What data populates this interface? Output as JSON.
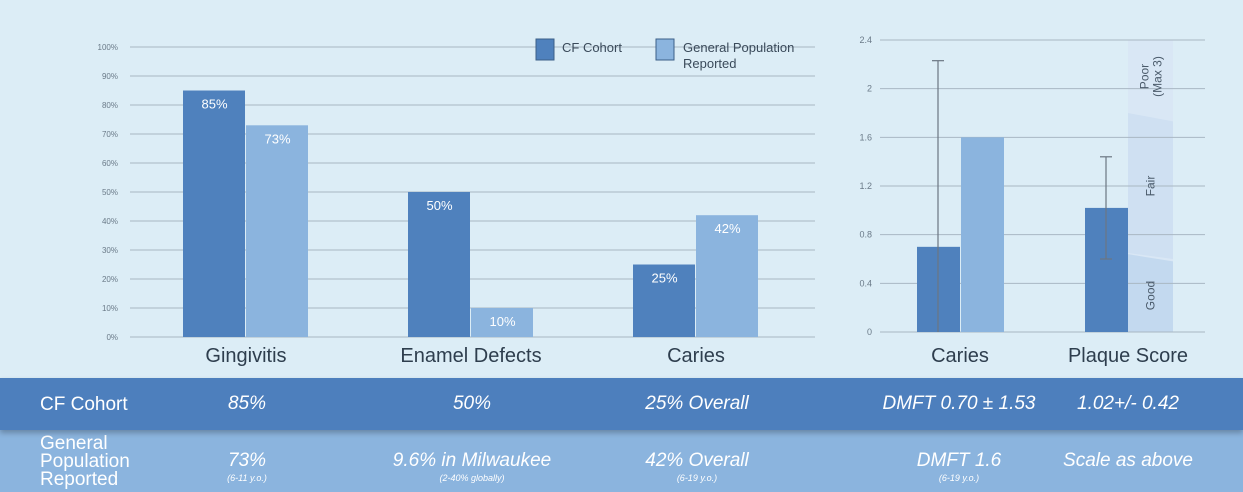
{
  "chart_data": [
    {
      "type": "bar",
      "categories": [
        "Gingivitis",
        "Enamel Defects",
        "Caries"
      ],
      "series": [
        {
          "name": "CF Cohort",
          "values": [
            85,
            50,
            25
          ],
          "labels": [
            "85%",
            "50%",
            "25%"
          ]
        },
        {
          "name": "General Population Reported",
          "values": [
            73,
            10,
            42
          ],
          "labels": [
            "73%",
            "10%",
            "42%"
          ]
        }
      ],
      "ylim": [
        0,
        100
      ],
      "yticks": [
        "0%",
        "10%",
        "20%",
        "30%",
        "40%",
        "50%",
        "60%",
        "70%",
        "80%",
        "90%",
        "100%"
      ],
      "legend": {
        "position": "top-right",
        "entries": [
          "CF Cohort",
          [
            "General Population",
            "Reported"
          ]
        ]
      },
      "grid": true
    },
    {
      "type": "bar",
      "categories": [
        "Caries",
        "Plaque Score"
      ],
      "series": [
        {
          "name": "CF Cohort",
          "values": [
            0.7,
            1.02
          ],
          "error": [
            1.53,
            0.42
          ]
        },
        {
          "name": "General Population Reported",
          "values": [
            1.6,
            null
          ]
        }
      ],
      "ylim": [
        0,
        2.4
      ],
      "yticks": [
        "0",
        "0.4",
        "0.8",
        "1.2",
        "1.6",
        "2",
        "2.4"
      ],
      "bands": [
        {
          "label": "Good",
          "from": 0,
          "to": 0.6
        },
        {
          "label": "Fair",
          "from": 0.6,
          "to": 1.8
        },
        {
          "label": [
            "Poor",
            "(Max 3)"
          ],
          "from": 1.8,
          "to": 2.4
        }
      ],
      "grid": true
    }
  ],
  "colors": {
    "cf": "#4f81bd",
    "gen": "#8bb4de",
    "bg": "#dcedf6",
    "band_good": "#c3d9ef",
    "band_fair": "#cfe0f2",
    "band_poor": "#d9e7f5"
  },
  "table": {
    "cf_row": {
      "header": "CF Cohort",
      "gingivitis": "85%",
      "enamel": "50%",
      "caries": "25% Overall",
      "dmft": "DMFT 0.70 ± 1.53",
      "plaque": "1.02+/- 0.42"
    },
    "gen_row": {
      "header_lines": [
        "General",
        "Population",
        "Reported"
      ],
      "gingivitis": "73%",
      "gingivitis_sub": "(6-11 y.o.)",
      "enamel": "9.6% in Milwaukee",
      "enamel_sub": "(2-40% globally)",
      "caries": "42% Overall",
      "caries_sub": "(6-19 y.o.)",
      "dmft": "DMFT 1.6",
      "dmft_sub": "(6-19 y.o.)",
      "plaque": "Scale as above"
    }
  }
}
